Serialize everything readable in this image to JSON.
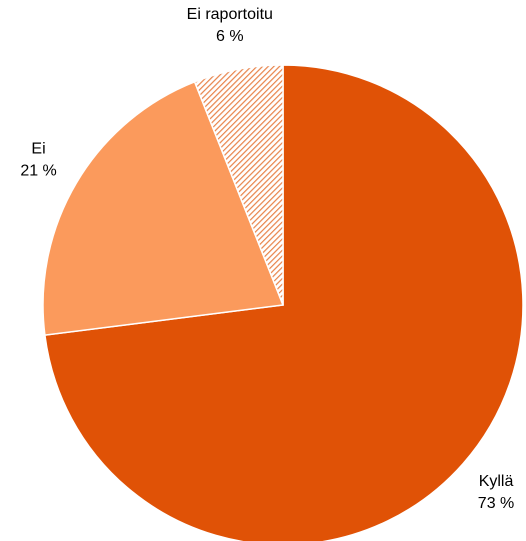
{
  "chart_data": {
    "type": "pie",
    "categories": [
      "Kyllä",
      "Ei",
      "Ei raportoitu"
    ],
    "values": [
      73,
      21,
      6
    ],
    "value_labels": [
      "73 %",
      "21 %",
      "6 %"
    ],
    "colors": [
      "#e05206",
      "#fb9a5c",
      "#e8834a"
    ],
    "hatched": [
      false,
      false,
      true
    ]
  }
}
